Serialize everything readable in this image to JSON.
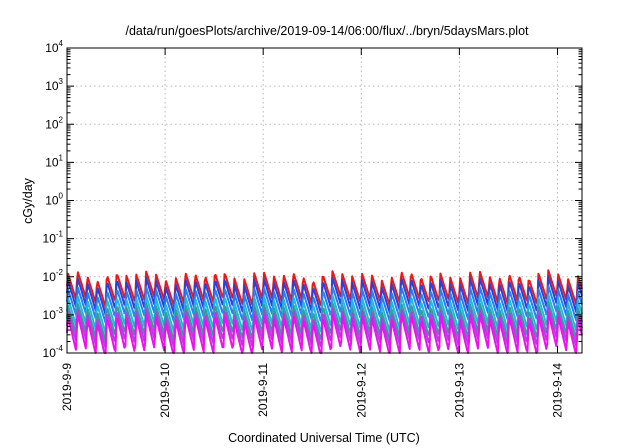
{
  "chart_data": {
    "type": "line",
    "title": "/data/run/goesPlots/archive/2019-09-14/06:00/flux/../bryn/5daysMars.plot",
    "xlabel": "Coordinated Universal Time (UTC)",
    "ylabel": "cGy/day",
    "yscale": "log",
    "ylim": [
      0.0001,
      10000
    ],
    "xlim": [
      "2019-09-09",
      "2019-09-14T06:00"
    ],
    "grid": true,
    "y_ticks": [
      {
        "base": "10",
        "exp": "-4",
        "value": 0.0001
      },
      {
        "base": "10",
        "exp": "-3",
        "value": 0.001
      },
      {
        "base": "10",
        "exp": "-2",
        "value": 0.01
      },
      {
        "base": "10",
        "exp": "-1",
        "value": 0.1
      },
      {
        "base": "10",
        "exp": "0",
        "value": 1
      },
      {
        "base": "10",
        "exp": "1",
        "value": 10
      },
      {
        "base": "10",
        "exp": "2",
        "value": 100
      },
      {
        "base": "10",
        "exp": "3",
        "value": 1000
      },
      {
        "base": "10",
        "exp": "4",
        "value": 10000
      }
    ],
    "x_ticks": [
      {
        "label": "2019-9-9",
        "value": "2019-09-09"
      },
      {
        "label": "2019-9-10",
        "value": "2019-09-10"
      },
      {
        "label": "2019-9-11",
        "value": "2019-09-11"
      },
      {
        "label": "2019-9-12",
        "value": "2019-09-12"
      },
      {
        "label": "2019-9-13",
        "value": "2019-09-13"
      },
      {
        "label": "2019-9-14",
        "value": "2019-09-14"
      }
    ],
    "series": [
      {
        "color": "#e8191a",
        "peak": 0.0115,
        "trough": 0.0022
      },
      {
        "color": "#2f3fd6",
        "peak": 0.0078,
        "trough": 0.0014
      },
      {
        "color": "#2a7df0",
        "peak": 0.0045,
        "trough": 0.00085
      },
      {
        "color": "#1fb8e0",
        "peak": 0.0027,
        "trough": 0.00045
      },
      {
        "color": "#2f9f9a",
        "peak": 0.0017,
        "trough": 0.00028
      },
      {
        "color": "#b040e0",
        "peak": 0.0012,
        "trough": 0.00018
      },
      {
        "color": "#ee10ee",
        "peak": 0.0009,
        "trough": 0.0001
      }
    ]
  }
}
